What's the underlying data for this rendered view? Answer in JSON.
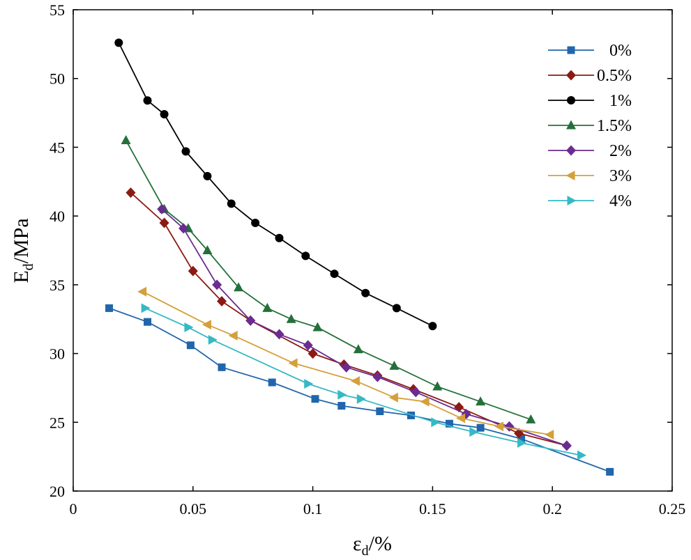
{
  "chart_data": {
    "type": "line",
    "title": "",
    "xlabel": {
      "main": "ε",
      "sub": "d",
      "suffix": "/%"
    },
    "ylabel": {
      "main": "E",
      "sub": "d",
      "suffix": "/MPa"
    },
    "xlim": [
      0,
      0.25
    ],
    "ylim": [
      20,
      55
    ],
    "xticks": [
      0,
      0.05,
      0.1,
      0.15,
      0.2,
      0.25
    ],
    "xtick_labels": [
      "0",
      "0.05",
      "0.1",
      "0.15",
      "0.2",
      "0.25"
    ],
    "yticks": [
      20,
      25,
      30,
      35,
      40,
      45,
      50,
      55
    ],
    "ytick_labels": [
      "20",
      "25",
      "30",
      "35",
      "40",
      "45",
      "50",
      "55"
    ],
    "grid": false,
    "legend_position": "top-right",
    "series": [
      {
        "name": "0%",
        "color": "#2166ac",
        "marker": "square",
        "x": [
          0.015,
          0.031,
          0.049,
          0.062,
          0.083,
          0.101,
          0.112,
          0.128,
          0.141,
          0.157,
          0.17,
          0.187,
          0.224
        ],
        "y": [
          33.3,
          32.3,
          30.6,
          29.0,
          27.9,
          26.7,
          26.2,
          25.8,
          25.5,
          24.9,
          24.6,
          23.8,
          21.4
        ]
      },
      {
        "name": "0.5%",
        "color": "#8b1a12",
        "marker": "diamond",
        "x": [
          0.024,
          0.038,
          0.05,
          0.062,
          0.074,
          0.1,
          0.113,
          0.127,
          0.142,
          0.161,
          0.186,
          0.206
        ],
        "y": [
          41.7,
          39.5,
          36.0,
          33.8,
          32.4,
          30.0,
          29.2,
          28.4,
          27.4,
          26.1,
          24.2,
          23.3
        ]
      },
      {
        "name": "1%",
        "color": "#000000",
        "marker": "circle",
        "x": [
          0.019,
          0.031,
          0.038,
          0.047,
          0.056,
          0.066,
          0.076,
          0.086,
          0.097,
          0.109,
          0.122,
          0.135,
          0.15
        ],
        "y": [
          52.6,
          48.4,
          47.4,
          44.7,
          42.9,
          40.9,
          39.5,
          38.4,
          37.1,
          35.8,
          34.4,
          33.3,
          32.0
        ]
      },
      {
        "name": "1.5%",
        "color": "#24703a",
        "marker": "triangle-up",
        "x": [
          0.022,
          0.038,
          0.048,
          0.056,
          0.069,
          0.081,
          0.091,
          0.102,
          0.119,
          0.134,
          0.152,
          0.17,
          0.191
        ],
        "y": [
          45.5,
          40.5,
          39.1,
          37.5,
          34.8,
          33.3,
          32.5,
          31.9,
          30.3,
          29.1,
          27.6,
          26.5,
          25.2
        ]
      },
      {
        "name": "2%",
        "color": "#6a2c91",
        "marker": "diamond",
        "x": [
          0.037,
          0.046,
          0.06,
          0.074,
          0.086,
          0.098,
          0.114,
          0.127,
          0.143,
          0.164,
          0.182,
          0.206
        ],
        "y": [
          40.5,
          39.1,
          35.0,
          32.4,
          31.4,
          30.6,
          29.0,
          28.3,
          27.2,
          25.6,
          24.7,
          23.3
        ]
      },
      {
        "name": "3%",
        "color": "#d4a03a",
        "marker": "triangle-left",
        "x": [
          0.029,
          0.056,
          0.067,
          0.092,
          0.118,
          0.134,
          0.147,
          0.162,
          0.178,
          0.199
        ],
        "y": [
          34.5,
          32.1,
          31.3,
          29.3,
          28.0,
          26.8,
          26.5,
          25.3,
          24.7,
          24.1
        ]
      },
      {
        "name": "4%",
        "color": "#35b9c4",
        "marker": "triangle-right",
        "x": [
          0.03,
          0.048,
          0.058,
          0.098,
          0.112,
          0.12,
          0.151,
          0.167,
          0.187,
          0.212
        ],
        "y": [
          33.3,
          31.9,
          31.0,
          27.8,
          27.0,
          26.7,
          25.0,
          24.3,
          23.5,
          22.6
        ]
      }
    ]
  }
}
